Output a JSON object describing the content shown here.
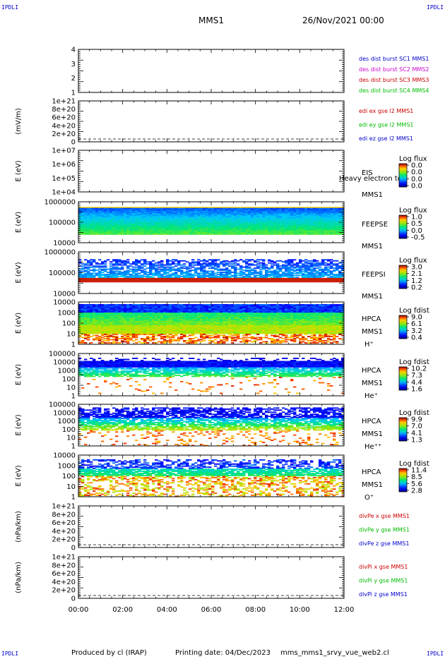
{
  "header": {
    "corner_left": "IPDLI",
    "corner_right": "IPDLI",
    "corner_bottom_left": "IPDLI",
    "corner_bottom_right": "IPDLI",
    "spacecraft": "MMS1",
    "date": "26/Nov/2021 00:00"
  },
  "footer": {
    "produced": "Produced by cl (IRAP)",
    "printing": "Printing date: 04/Dec/2023",
    "file": "mms_mms1_srvy_vue_web2.cl"
  },
  "colors": {
    "blue": "#0000cc",
    "magenta": "#cc00cc",
    "red": "#cc0000",
    "green": "#00bb00"
  },
  "chart_data": [
    {
      "type": "line",
      "panel": "des",
      "yticks": [
        "4",
        "3",
        "2",
        "1"
      ],
      "ylabel": "",
      "legend": [
        {
          "text": "des dist burst SC1 MMS1",
          "color": "#0000cc"
        },
        {
          "text": "des dist burst SC2 MMS2",
          "color": "#cc00cc"
        },
        {
          "text": "des dist burst SC3 MMS3",
          "color": "#cc0000"
        },
        {
          "text": "des dist burst SC4 MMS4",
          "color": "#00bb00"
        }
      ]
    },
    {
      "type": "line",
      "panel": "edi",
      "yticks": [
        "1e+21",
        "8e+20",
        "6e+20",
        "4e+20",
        "2e+20",
        "0"
      ],
      "ylabel": "(mV/m)",
      "legend": [
        {
          "text": "edi ex gse l2 MMS1",
          "color": "#cc0000"
        },
        {
          "text": "edi ey gse l2 MMS1",
          "color": "#00bb00"
        },
        {
          "text": "edi ez gse l2 MMS1",
          "color": "#0000cc"
        }
      ]
    },
    {
      "type": "heatmap",
      "panel": "eis",
      "yticks": [
        "1e+07",
        "1e+06",
        "1e+05",
        "1e+04"
      ],
      "ylabel": "E (eV)",
      "labels": [
        "EIS",
        "MMS1"
      ],
      "overlay": "Heavy electron to",
      "cbar_title": "Log flux",
      "cbar_ticks": [
        "0.0",
        "0.0",
        "0.0",
        "0.0"
      ]
    },
    {
      "type": "heatmap",
      "panel": "feepse",
      "yticks": [
        "1000000",
        "100000",
        "10000"
      ],
      "ylabel": "E (eV)",
      "labels": [
        "FEEPSE",
        "MMS1"
      ],
      "cbar_title": "Log flux",
      "cbar_ticks": [
        "1.0",
        "0.5",
        "0.0",
        "-0.5"
      ]
    },
    {
      "type": "heatmap",
      "panel": "feepsi",
      "yticks": [
        "1000000",
        "100000",
        "10000"
      ],
      "ylabel": "E (eV)",
      "labels": [
        "FEEPSI",
        "MMS1"
      ],
      "cbar_title": "Log flux",
      "cbar_ticks": [
        "3.0",
        "2.1",
        "1.2",
        "0.2"
      ]
    },
    {
      "type": "heatmap",
      "panel": "hpca_h",
      "yticks": [
        "10000",
        "1000",
        "100",
        "10",
        "1"
      ],
      "ylabel": "E (eV)",
      "labels": [
        "HPCA",
        "MMS1",
        "H⁺"
      ],
      "cbar_title": "Log fdist",
      "cbar_ticks": [
        "9.0",
        "6.1",
        "3.2",
        "0.4"
      ]
    },
    {
      "type": "heatmap",
      "panel": "hpca_he",
      "yticks": [
        "100000",
        "10000",
        "1000",
        "100",
        "10",
        "1"
      ],
      "ylabel": "E (eV)",
      "labels": [
        "HPCA",
        "MMS1",
        "He⁺"
      ],
      "cbar_title": "Log fdist",
      "cbar_ticks": [
        "10.2",
        "7.3",
        "4.4",
        "1.6"
      ]
    },
    {
      "type": "heatmap",
      "panel": "hpca_he2",
      "yticks": [
        "100000",
        "10000",
        "1000",
        "100",
        "10",
        "1"
      ],
      "ylabel": "E (eV)",
      "labels": [
        "HPCA",
        "MMS1",
        "He⁺⁺"
      ],
      "cbar_title": "Log fdist",
      "cbar_ticks": [
        "9.9",
        "7.0",
        "4.1",
        "1.3"
      ]
    },
    {
      "type": "heatmap",
      "panel": "hpca_o",
      "yticks": [
        "10000",
        "1000",
        "100",
        "10",
        "1"
      ],
      "ylabel": "E (eV)",
      "labels": [
        "HPCA",
        "MMS1",
        "O⁺"
      ],
      "cbar_title": "Log fdist",
      "cbar_ticks": [
        "11.4",
        "8.5",
        "5.6",
        "2.8"
      ]
    },
    {
      "type": "line",
      "panel": "divpe",
      "yticks": [
        "1e+21",
        "8e+20",
        "6e+20",
        "4e+20",
        "2e+20",
        "0"
      ],
      "ylabel": "(nPa/km)",
      "legend": [
        {
          "text": "divPe x gse MMS1",
          "color": "#cc0000"
        },
        {
          "text": "divPe y gse MMS1",
          "color": "#00bb00"
        },
        {
          "text": "divPe z gse MMS1",
          "color": "#0000cc"
        }
      ]
    },
    {
      "type": "line",
      "panel": "divpi",
      "yticks": [
        "1e+21",
        "8e+20",
        "6e+20",
        "4e+20",
        "2e+20",
        "0"
      ],
      "ylabel": "(nPa/km)",
      "legend": [
        {
          "text": "divPi x gse MMS1",
          "color": "#cc0000"
        },
        {
          "text": "divPi y gse MMS1",
          "color": "#00bb00"
        },
        {
          "text": "divPi z gse MMS1",
          "color": "#0000cc"
        }
      ],
      "xticks": [
        "00:00",
        "02:00",
        "04:00",
        "06:00",
        "08:00",
        "10:00",
        "12:00"
      ]
    }
  ]
}
